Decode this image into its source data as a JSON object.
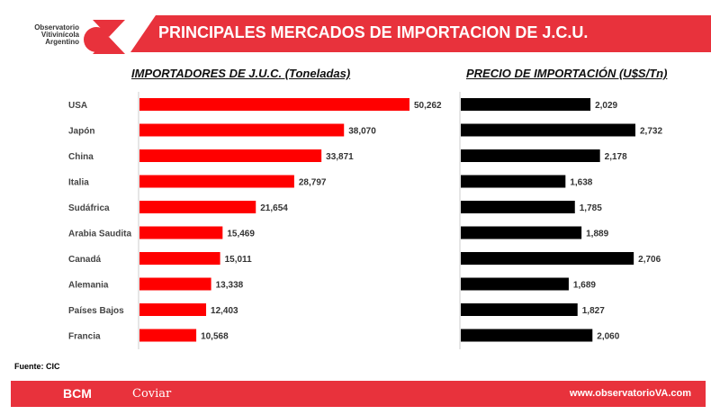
{
  "logo": {
    "text": "Observatorio Vitivinícola Argentino"
  },
  "header": {
    "title": "PRINCIPALES MERCADOS DE IMPORTACION DE J.C.U."
  },
  "source": "Fuente: CIC",
  "footer": {
    "url": "www.observatorioVA.com",
    "sponsor1": "BCM",
    "sponsor2": "Coviar"
  },
  "colors": {
    "brand": "#e8323c",
    "left_bars": "#ff0000",
    "right_bars": "#000000"
  },
  "chart_data": [
    {
      "type": "bar",
      "orientation": "horizontal",
      "title": "IMPORTADORES DE J.U.C. (Toneladas)",
      "categories": [
        "USA",
        "Japón",
        "China",
        "Italia",
        "Sudáfrica",
        "Arabia Saudita",
        "Canadá",
        "Alemania",
        "Países Bajos",
        "Francia"
      ],
      "values": [
        50262,
        38070,
        33871,
        28797,
        21654,
        15469,
        15011,
        13338,
        12403,
        10568
      ],
      "labels": [
        "50,262",
        "38,070",
        "33,871",
        "28,797",
        "21,654",
        "15,469",
        "15,011",
        "13,338",
        "12,403",
        "10,568"
      ]
    },
    {
      "type": "bar",
      "orientation": "horizontal",
      "title": "PRECIO DE IMPORTACIÓN (U$S/Tn)",
      "categories": [
        "USA",
        "Japón",
        "China",
        "Italia",
        "Sudáfrica",
        "Arabia Saudita",
        "Canadá",
        "Alemania",
        "Países Bajos",
        "Francia"
      ],
      "values": [
        2029,
        2732,
        2178,
        1638,
        1785,
        1889,
        2706,
        1689,
        1827,
        2060
      ],
      "labels": [
        "2,029",
        "2,732",
        "2,178",
        "1,638",
        "1,785",
        "1,889",
        "2,706",
        "1,689",
        "1,827",
        "2,060"
      ]
    }
  ]
}
